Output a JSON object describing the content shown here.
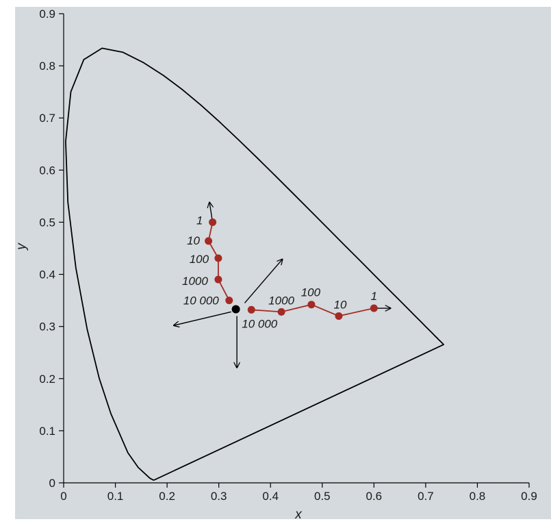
{
  "colors": {
    "background": "#d4dadd",
    "series": "#a52a25",
    "neutral_point": "#000000",
    "outline": "#000000"
  },
  "chart_data": {
    "type": "scatter",
    "title": "",
    "xlabel": "x",
    "ylabel": "y",
    "xlim": [
      0,
      0.9
    ],
    "ylim": [
      0,
      0.9
    ],
    "xticks": [
      "0",
      "0.1",
      "0.2",
      "0.3",
      "0.4",
      "0.5",
      "0.6",
      "0.7",
      "0.8",
      "0.9"
    ],
    "yticks": [
      "0",
      "0.1",
      "0.2",
      "0.3",
      "0.4",
      "0.5",
      "0.6",
      "0.7",
      "0.8",
      "0.9"
    ],
    "grid": false,
    "gamut_boundary": {
      "x": [
        0.1741,
        0.1666,
        0.144,
        0.1241,
        0.0913,
        0.0687,
        0.0454,
        0.0235,
        0.0082,
        0.0039,
        0.0139,
        0.0389,
        0.0743,
        0.1142,
        0.1547,
        0.1929,
        0.2296,
        0.2658,
        0.3016,
        0.3373,
        0.3731,
        0.4087,
        0.4441,
        0.4788,
        0.5125,
        0.5448,
        0.5752,
        0.6029,
        0.627,
        0.6482,
        0.6658,
        0.6801,
        0.6915,
        0.7006,
        0.7079,
        0.714,
        0.719,
        0.723,
        0.726,
        0.7283,
        0.73,
        0.7311,
        0.732,
        0.7327,
        0.7334,
        0.734,
        0.7347,
        0.7347,
        0.1741
      ],
      "y": [
        0.005,
        0.0089,
        0.0297,
        0.0578,
        0.1327,
        0.2007,
        0.295,
        0.4127,
        0.5384,
        0.6548,
        0.7502,
        0.812,
        0.8338,
        0.8262,
        0.8059,
        0.7816,
        0.7543,
        0.7243,
        0.6923,
        0.6589,
        0.6245,
        0.5896,
        0.5547,
        0.5202,
        0.4866,
        0.4544,
        0.4242,
        0.3965,
        0.3725,
        0.3514,
        0.334,
        0.3197,
        0.3083,
        0.2993,
        0.292,
        0.2859,
        0.2809,
        0.277,
        0.274,
        0.2717,
        0.27,
        0.2689,
        0.268,
        0.2673,
        0.2666,
        0.266,
        0.2653,
        0.2653,
        0.005
      ]
    },
    "neutral_point": {
      "x": 0.333,
      "y": 0.333
    },
    "series": [
      {
        "points": [
          {
            "x": 0.288,
            "y": 0.5,
            "label": "1"
          },
          {
            "x": 0.28,
            "y": 0.464,
            "label": "10"
          },
          {
            "x": 0.299,
            "y": 0.431,
            "label": "100"
          },
          {
            "x": 0.299,
            "y": 0.39,
            "label": "1000"
          },
          {
            "x": 0.32,
            "y": 0.35,
            "label": "10 000"
          }
        ],
        "arrow_to": {
          "x": 0.282,
          "y": 0.538
        }
      },
      {
        "points": [
          {
            "x": 0.6,
            "y": 0.335,
            "label": "1"
          },
          {
            "x": 0.532,
            "y": 0.32,
            "label": "10"
          },
          {
            "x": 0.479,
            "y": 0.342,
            "label": "100"
          },
          {
            "x": 0.421,
            "y": 0.328,
            "label": "1000"
          },
          {
            "x": 0.363,
            "y": 0.332,
            "label": "10 000"
          }
        ],
        "arrow_to": {
          "x": 0.632,
          "y": 0.335
        }
      }
    ],
    "direction_arrows": [
      {
        "from": {
          "x": 0.35,
          "y": 0.345
        },
        "to": {
          "x": 0.423,
          "y": 0.429
        }
      },
      {
        "from": {
          "x": 0.324,
          "y": 0.328
        },
        "to": {
          "x": 0.213,
          "y": 0.302
        }
      },
      {
        "from": {
          "x": 0.335,
          "y": 0.32
        },
        "to": {
          "x": 0.335,
          "y": 0.221
        }
      }
    ]
  }
}
